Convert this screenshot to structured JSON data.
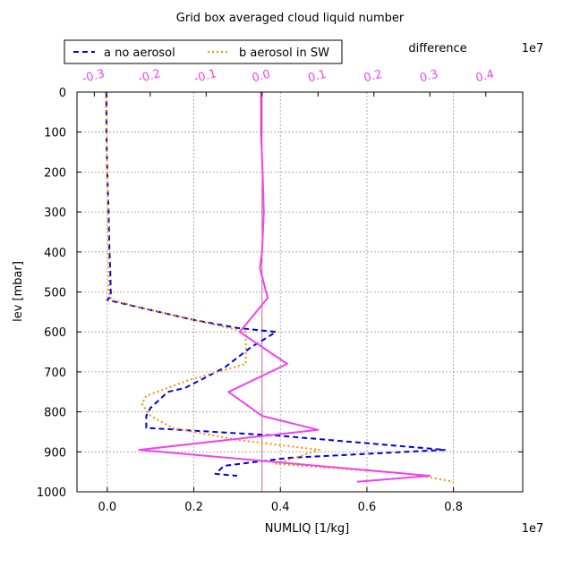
{
  "chart_data": {
    "type": "line",
    "title": "Grid box averaged cloud liquid number",
    "xlabel": "NUMLIQ [1/kg]",
    "ylabel": "lev [mbar]",
    "x_offset_label": "1e7",
    "top_axis_title": "difference",
    "top_offset_label": "1e7",
    "xlim": [
      -0.07,
      0.96
    ],
    "ylim": [
      1000,
      0
    ],
    "diff_xlim": [
      -0.331,
      0.466
    ],
    "grid": true,
    "legend_position": "top-left",
    "x_ticks": [
      "0.0",
      "0.2",
      "0.4",
      "0.6",
      "0.8"
    ],
    "x_tick_values": [
      0.0,
      0.2,
      0.4,
      0.6,
      0.8
    ],
    "y_ticks": [
      "0",
      "100",
      "200",
      "300",
      "400",
      "500",
      "600",
      "700",
      "800",
      "900",
      "1000"
    ],
    "y_tick_values": [
      0,
      100,
      200,
      300,
      400,
      500,
      600,
      700,
      800,
      900,
      1000
    ],
    "top_ticks": [
      "-0.3",
      "-0.2",
      "-0.1",
      "0.0",
      "0.1",
      "0.2",
      "0.3",
      "0.4"
    ],
    "top_tick_values": [
      -0.3,
      -0.2,
      -0.1,
      0.0,
      0.1,
      0.2,
      0.3,
      0.4
    ],
    "series": [
      {
        "name": "a no aerosol",
        "color": "#0000dd",
        "style": "dashed",
        "x": [
          -0.002,
          -0.002,
          0.0,
          0.003,
          0.005,
          0.007,
          0.008,
          0.009,
          0.0,
          0.08,
          0.2,
          0.3,
          0.39,
          0.33,
          0.27,
          0.18,
          0.14,
          0.1,
          0.09,
          0.09,
          0.4,
          0.78,
          0.42,
          0.27,
          0.25,
          0.3
        ],
        "y": [
          0,
          100,
          200,
          300,
          400,
          450,
          500,
          510,
          520,
          540,
          570,
          590,
          600,
          640,
          690,
          740,
          750,
          790,
          810,
          840,
          860,
          895,
          915,
          935,
          955,
          960
        ]
      },
      {
        "name": "b aerosol in SW",
        "color": "#ff8c00",
        "style": "dotted",
        "x": [
          -0.004,
          -0.002,
          0.0,
          0.002,
          0.003,
          0.004,
          0.003,
          0.01,
          0.08,
          0.2,
          0.32,
          0.32,
          0.19,
          0.09,
          0.08,
          0.1,
          0.15,
          0.3,
          0.49,
          0.39,
          0.7,
          0.8
        ],
        "y": [
          0,
          100,
          200,
          300,
          400,
          450,
          500,
          520,
          540,
          570,
          600,
          680,
          720,
          760,
          780,
          810,
          840,
          870,
          895,
          930,
          955,
          975
        ]
      },
      {
        "name": "difference",
        "color": "#ee44ee",
        "style": "solid",
        "x": [
          -0.002,
          -0.002,
          0.001,
          0.003,
          0.0,
          -0.004,
          0.01,
          -0.04,
          0.045,
          -0.06,
          0.0,
          0.1,
          -0.22,
          -0.06,
          0.3,
          0.17
        ],
        "y": [
          0,
          100,
          200,
          300,
          400,
          440,
          515,
          600,
          680,
          750,
          810,
          845,
          895,
          915,
          960,
          975
        ]
      }
    ]
  }
}
